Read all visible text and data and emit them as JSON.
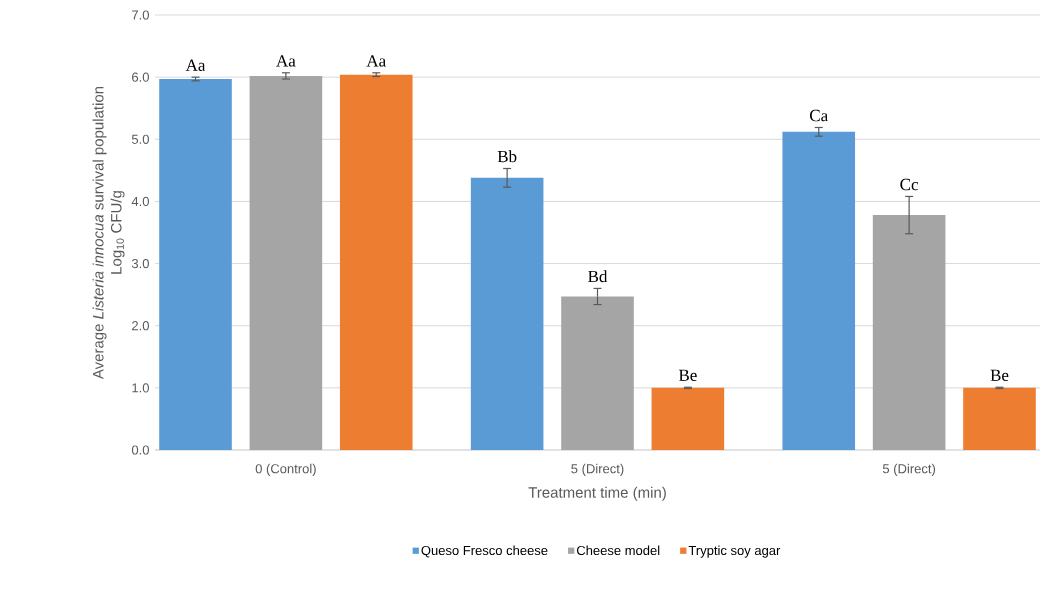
{
  "chart_data": {
    "type": "bar",
    "xlabel": "Treatment time (min)",
    "ylabel": [
      "Average *Listeria innocua* survival  population",
      "Log$_{10}$ CFU/g"
    ],
    "categories": [
      "0 (Control)",
      "5 (Direct)",
      "5 (Direct)"
    ],
    "series": [
      {
        "name": "Queso Fresco cheese",
        "color": "#5b9bd5",
        "values": [
          5.97,
          4.38,
          5.12
        ],
        "errors": [
          0.03,
          0.15,
          0.07
        ],
        "value_labels": [
          "Aa",
          "Bb",
          "Ca"
        ]
      },
      {
        "name": "Cheese model",
        "color": "#a5a5a5",
        "values": [
          6.02,
          2.47,
          3.78
        ],
        "errors": [
          0.05,
          0.13,
          0.3
        ],
        "value_labels": [
          "Aa",
          "Bd",
          "Cc"
        ]
      },
      {
        "name": "Tryptic soy agar",
        "color": "#ed7d31",
        "values": [
          6.04,
          1.0,
          1.0
        ],
        "errors": [
          0.03,
          0.01,
          0.01
        ],
        "value_labels": [
          "Aa",
          "Be",
          "Be"
        ]
      }
    ],
    "ylim": [
      0,
      7
    ],
    "yticks": [
      {
        "value": 0,
        "label": "0.0"
      },
      {
        "value": 1,
        "label": "1.0"
      },
      {
        "value": 2,
        "label": "2.0"
      },
      {
        "value": 3,
        "label": "3.0"
      },
      {
        "value": 4,
        "label": "4.0"
      },
      {
        "value": 5,
        "label": "5.0"
      },
      {
        "value": 6,
        "label": "6.0"
      },
      {
        "value": 7,
        "label": "7.0"
      }
    ],
    "grid": "y",
    "legend": "bottom"
  }
}
